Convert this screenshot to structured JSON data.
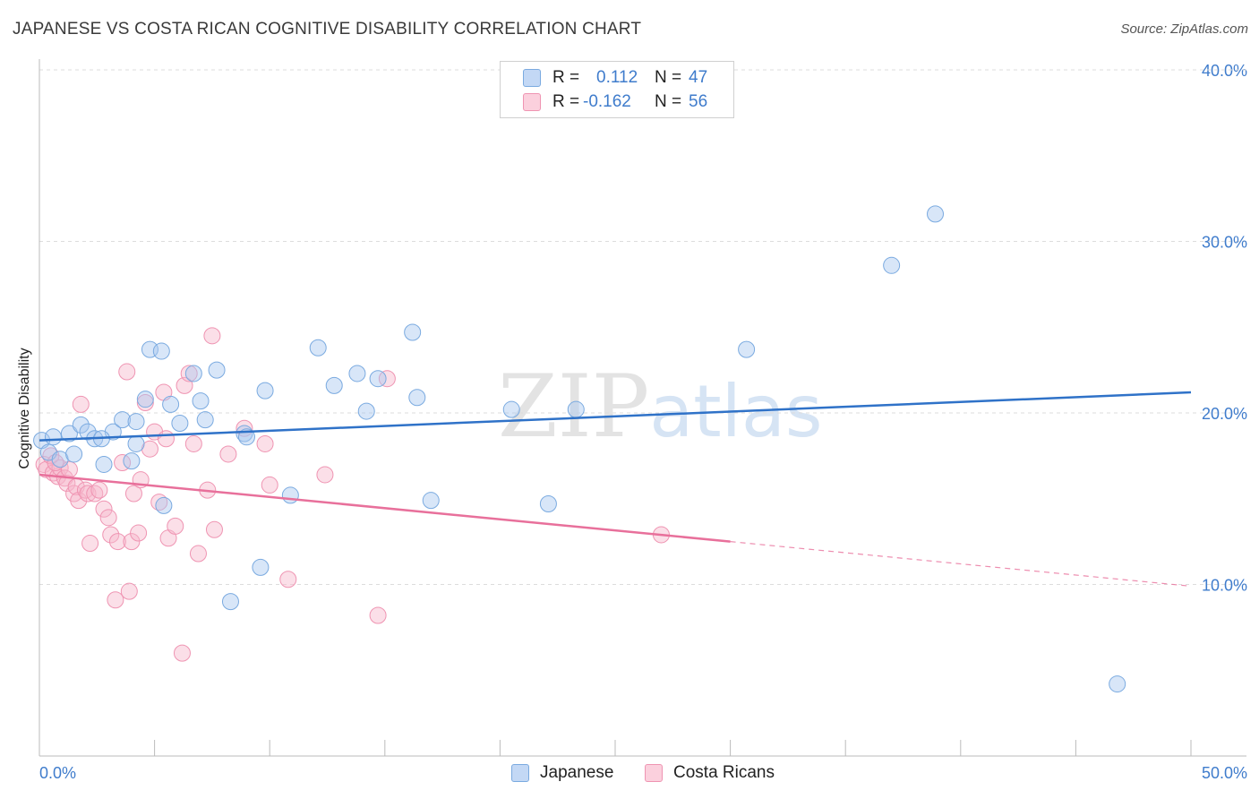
{
  "title": "JAPANESE VS COSTA RICAN COGNITIVE DISABILITY CORRELATION CHART",
  "source": "Source: ZipAtlas.com",
  "watermark": {
    "zip": "ZIP",
    "atlas": "atlas"
  },
  "legend": {
    "rows": [
      {
        "r_label": "R =",
        "r_value": "0.112",
        "n_label": "N =",
        "n_value": "47"
      },
      {
        "r_label": "R =",
        "r_value": "-0.162",
        "n_label": "N =",
        "n_value": "56"
      }
    ]
  },
  "bottom_legend": [
    "Japanese",
    "Costa Ricans"
  ],
  "colors": {
    "japanese_fill": "#a9c8f0",
    "japanese_stroke": "#7aaae0",
    "japanese_line": "#2f72c8",
    "costa_fill": "#f6b8cb",
    "costa_stroke": "#ef94b2",
    "costa_line": "#e8709b",
    "tick_text": "#3f7ccc",
    "grid": "#dddddd"
  },
  "chart_data": {
    "type": "scatter",
    "title": "JAPANESE VS COSTA RICAN COGNITIVE DISABILITY CORRELATION CHART",
    "xlabel": "",
    "ylabel": "Cognitive Disability",
    "xlim": [
      0,
      50
    ],
    "ylim": [
      0,
      40
    ],
    "x_tick_labels": [
      "0.0%",
      "50.0%"
    ],
    "y_ticks": [
      10,
      20,
      30,
      40
    ],
    "y_tick_labels": [
      "10.0%",
      "20.0%",
      "30.0%",
      "40.0%"
    ],
    "grid": "horizontal dashed",
    "legend_position": "top-center",
    "series": [
      {
        "name": "Japanese",
        "r": 0.112,
        "n": 47,
        "trend": {
          "x": [
            0,
            50
          ],
          "y": [
            18.4,
            21.2
          ]
        },
        "points": [
          [
            0.1,
            18.4
          ],
          [
            0.4,
            17.7
          ],
          [
            0.6,
            18.6
          ],
          [
            0.9,
            17.3
          ],
          [
            1.3,
            18.8
          ],
          [
            1.5,
            17.6
          ],
          [
            1.8,
            19.3
          ],
          [
            2.1,
            18.9
          ],
          [
            2.4,
            18.5
          ],
          [
            2.8,
            17.0
          ],
          [
            3.2,
            18.9
          ],
          [
            3.6,
            19.6
          ],
          [
            4.0,
            17.2
          ],
          [
            4.2,
            19.5
          ],
          [
            4.6,
            20.8
          ],
          [
            4.8,
            23.7
          ],
          [
            5.3,
            23.6
          ],
          [
            5.7,
            20.5
          ],
          [
            6.1,
            19.4
          ],
          [
            6.7,
            22.3
          ],
          [
            7.0,
            20.7
          ],
          [
            7.2,
            19.6
          ],
          [
            7.7,
            22.5
          ],
          [
            8.3,
            9.0
          ],
          [
            8.9,
            18.8
          ],
          [
            9.0,
            18.6
          ],
          [
            9.6,
            11.0
          ],
          [
            9.8,
            21.3
          ],
          [
            10.9,
            15.2
          ],
          [
            12.1,
            23.8
          ],
          [
            12.8,
            21.6
          ],
          [
            13.8,
            22.3
          ],
          [
            14.2,
            20.1
          ],
          [
            14.7,
            22.0
          ],
          [
            16.2,
            24.7
          ],
          [
            16.4,
            20.9
          ],
          [
            17.0,
            14.9
          ],
          [
            20.5,
            20.2
          ],
          [
            22.1,
            14.7
          ],
          [
            23.3,
            20.2
          ],
          [
            30.7,
            23.7
          ],
          [
            37.0,
            28.6
          ],
          [
            38.9,
            31.6
          ],
          [
            46.8,
            4.2
          ],
          [
            4.2,
            18.2
          ],
          [
            2.7,
            18.5
          ],
          [
            5.4,
            14.6
          ]
        ]
      },
      {
        "name": "Costa Ricans",
        "r": -0.162,
        "n": 56,
        "trend_solid": {
          "x": [
            0,
            30
          ],
          "y": [
            16.4,
            12.5
          ]
        },
        "trend_dashed": {
          "x": [
            30,
            50
          ],
          "y": [
            12.5,
            9.9
          ]
        },
        "points": [
          [
            0.2,
            17.0
          ],
          [
            0.3,
            16.7
          ],
          [
            0.5,
            17.5
          ],
          [
            0.6,
            16.5
          ],
          [
            0.8,
            16.3
          ],
          [
            0.9,
            16.8
          ],
          [
            1.1,
            16.2
          ],
          [
            1.2,
            15.9
          ],
          [
            1.3,
            16.7
          ],
          [
            1.5,
            15.3
          ],
          [
            1.6,
            15.7
          ],
          [
            1.7,
            14.9
          ],
          [
            1.8,
            20.5
          ],
          [
            2.0,
            15.5
          ],
          [
            2.1,
            15.3
          ],
          [
            2.2,
            12.4
          ],
          [
            2.4,
            15.3
          ],
          [
            2.6,
            15.5
          ],
          [
            2.8,
            14.4
          ],
          [
            3.0,
            13.9
          ],
          [
            3.1,
            12.9
          ],
          [
            3.3,
            9.1
          ],
          [
            3.4,
            12.5
          ],
          [
            3.6,
            17.1
          ],
          [
            3.8,
            22.4
          ],
          [
            3.9,
            9.6
          ],
          [
            4.0,
            12.5
          ],
          [
            4.1,
            15.3
          ],
          [
            4.3,
            13.0
          ],
          [
            4.4,
            16.1
          ],
          [
            4.6,
            20.6
          ],
          [
            4.8,
            17.9
          ],
          [
            5.0,
            18.9
          ],
          [
            5.2,
            14.8
          ],
          [
            5.4,
            21.2
          ],
          [
            5.5,
            18.5
          ],
          [
            5.6,
            12.7
          ],
          [
            5.9,
            13.4
          ],
          [
            6.2,
            6.0
          ],
          [
            6.3,
            21.6
          ],
          [
            6.5,
            22.3
          ],
          [
            6.7,
            18.2
          ],
          [
            6.9,
            11.8
          ],
          [
            7.3,
            15.5
          ],
          [
            7.5,
            24.5
          ],
          [
            7.6,
            13.2
          ],
          [
            8.2,
            17.6
          ],
          [
            8.9,
            19.1
          ],
          [
            9.8,
            18.2
          ],
          [
            10.0,
            15.8
          ],
          [
            10.8,
            10.3
          ],
          [
            12.4,
            16.4
          ],
          [
            14.7,
            8.2
          ],
          [
            15.1,
            22.0
          ],
          [
            27.0,
            12.9
          ],
          [
            0.7,
            17.1
          ]
        ]
      }
    ]
  }
}
